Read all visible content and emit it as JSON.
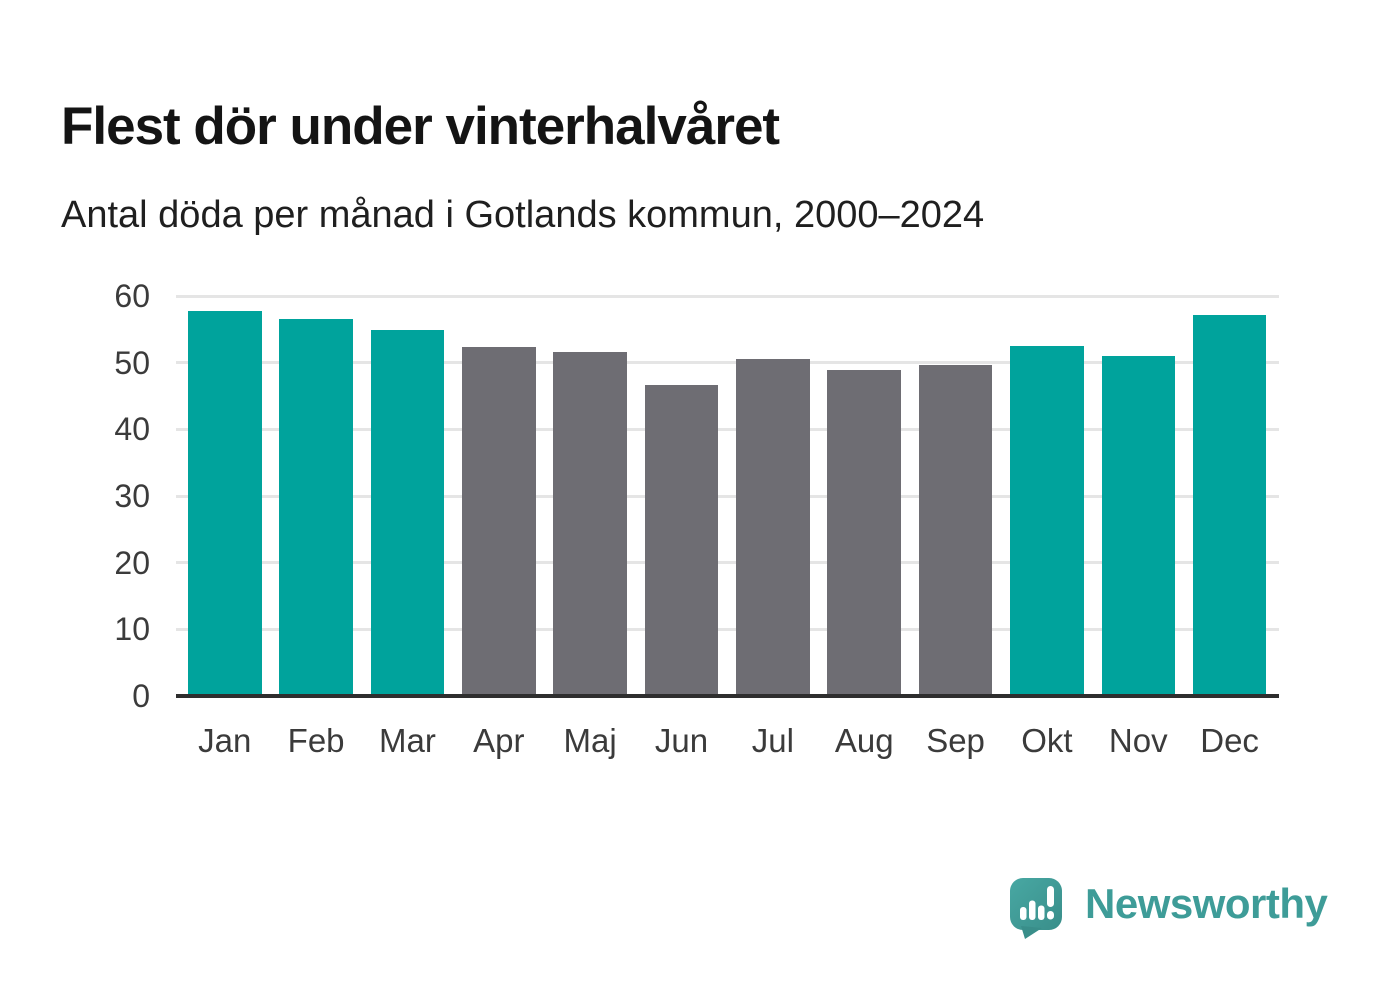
{
  "header": {
    "title": "Flest dör under vinterhalvåret",
    "subtitle": "Antal döda per månad i Gotlands kommun, 2000–2024"
  },
  "chart_data": {
    "type": "bar",
    "title": "Flest dör under vinterhalvåret",
    "subtitle": "Antal döda per månad i Gotlands kommun, 2000–2024",
    "categories": [
      "Jan",
      "Feb",
      "Mar",
      "Apr",
      "Maj",
      "Jun",
      "Jul",
      "Aug",
      "Sep",
      "Okt",
      "Nov",
      "Dec"
    ],
    "values": [
      57.8,
      56.5,
      54.9,
      52.3,
      51.6,
      46.6,
      50.5,
      48.9,
      49.6,
      52.5,
      51.0,
      57.2
    ],
    "highlight_categories": [
      "Jan",
      "Feb",
      "Mar",
      "Okt",
      "Nov",
      "Dec"
    ],
    "xlabel": "",
    "ylabel": "",
    "ylim": [
      0,
      60
    ],
    "yticks": [
      0,
      10,
      20,
      30,
      40,
      50,
      60
    ],
    "grid": true,
    "legend": "none",
    "colors": {
      "highlight": "#00a39c",
      "other": "#6e6d73",
      "gridline": "#e5e5e5",
      "axis": "#2e2e2e",
      "tick_text": "#3b3b3b"
    }
  },
  "footer": {
    "brand": "Newsworthy",
    "brand_color": "#3e9c98",
    "logo_icon": "newsworthy-speech-bubble-chart-icon"
  }
}
